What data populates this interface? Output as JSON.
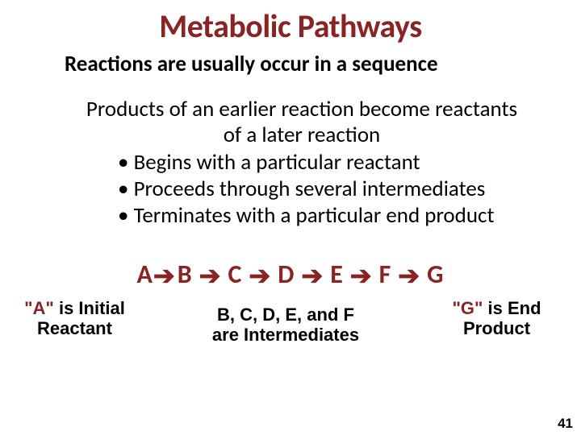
{
  "title": {
    "text": "Metabolic Pathways",
    "color": "#8a2323",
    "fontsize": 40
  },
  "subtitle": {
    "text": "Reactions are usually occur in a sequence",
    "color": "#000000",
    "fontsize": 27
  },
  "intro": {
    "line1": "Products of an earlier reaction become reactants",
    "line2": "of a later reaction",
    "color": "#000000",
    "fontsize": 27
  },
  "bullets": {
    "items": [
      "Begins with a particular reactant",
      "Proceeds through several intermediates",
      "Terminates with a particular end product"
    ],
    "color": "#000000",
    "fontsize": 27
  },
  "pathway": {
    "nodes": [
      "A",
      "B",
      "C",
      "D",
      "E",
      "F",
      "G"
    ],
    "node_color": "#8a2323",
    "arrow_color": "#8a2323",
    "fontsize": 32,
    "arrow_glyph": "➔"
  },
  "labels": {
    "left": {
      "quoted": "\"A\"",
      "rest": " is Initial Reactant"
    },
    "mid_line1": "B, C, D, E, and F",
    "mid_line2": "are Intermediates",
    "right": {
      "quoted": "\"G\"",
      "rest": " is End Product"
    },
    "quote_color": "#8a2323",
    "text_color": "#000000",
    "fontsize": 22
  },
  "pagenum": {
    "text": "41",
    "color": "#000000",
    "fontsize": 17
  },
  "background_color": "#ffffff"
}
